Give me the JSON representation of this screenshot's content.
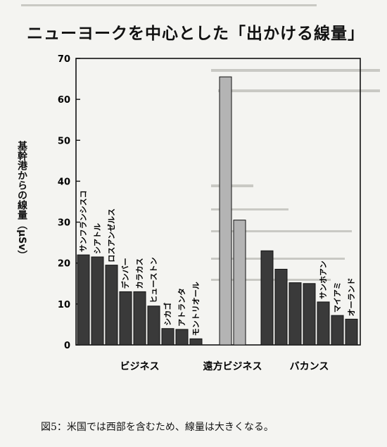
{
  "title": "ニューヨークを中心とした「出かける線量」",
  "caption": "図5：米国では西部を含むため、線量は大きくなる。",
  "chart_data": {
    "type": "bar",
    "title": "ニューヨークを中心とした「出かける線量」",
    "ylabel": "基幹港からの線量（μSv）",
    "xlabel": "",
    "ylim": [
      0,
      70
    ],
    "yticks": [
      0,
      10,
      20,
      30,
      40,
      50,
      60,
      70
    ],
    "grid": false,
    "legend": "none",
    "groups": [
      {
        "label": "ビジネス",
        "color": "#3a3a3a",
        "categories": [
          "サンフランシスコ",
          "シアトル",
          "ロスアンゼルス",
          "デンバー",
          "カラカス",
          "ヒューストン",
          "シカゴ",
          "アトランタ",
          "モントリオール"
        ],
        "values": [
          22,
          21.5,
          19.5,
          13,
          13,
          9.5,
          4,
          3.8,
          1.5
        ]
      },
      {
        "label": "遠方ビジネス",
        "color": "#b4b4b4",
        "categories": [
          "",
          ""
        ],
        "values": [
          65.5,
          30.5
        ]
      },
      {
        "label": "バカンス",
        "color": "#3a3a3a",
        "categories": [
          "",
          "",
          "",
          "",
          "サンホアン",
          "マイアミ",
          "オーランド"
        ],
        "values": [
          23,
          18.5,
          15.2,
          15,
          10.5,
          7.2,
          6.3
        ]
      }
    ]
  }
}
